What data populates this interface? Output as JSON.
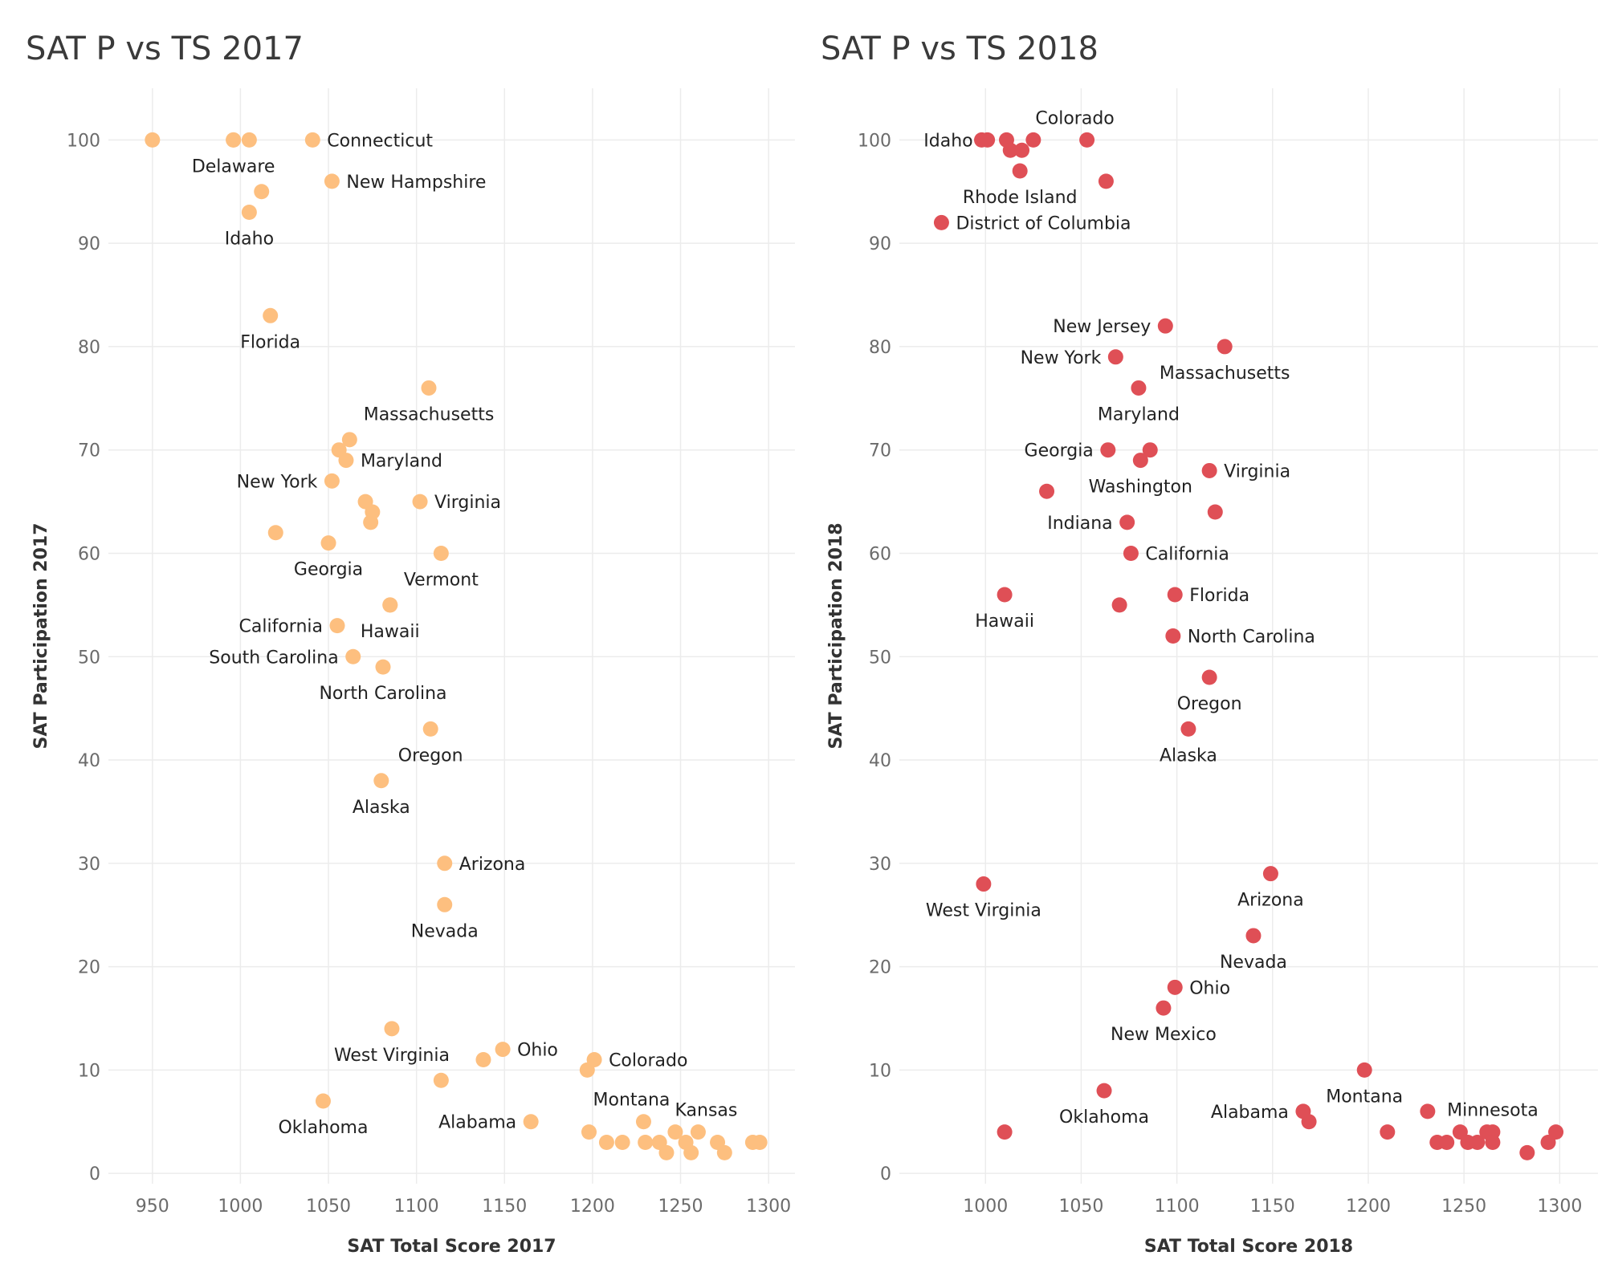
{
  "chart_data": [
    {
      "type": "scatter",
      "title": "SAT P vs TS 2017",
      "xlabel": "SAT Total Score 2017",
      "ylabel": "SAT Participation 2017",
      "xlim": [
        925,
        1315
      ],
      "ylim": [
        -1,
        105
      ],
      "xticks": [
        950,
        1000,
        1050,
        1100,
        1150,
        1200,
        1250,
        1300
      ],
      "yticks": [
        0,
        10,
        20,
        30,
        40,
        50,
        60,
        70,
        80,
        90,
        100
      ],
      "grid": true,
      "color": "#FDBF7F",
      "points": [
        {
          "x": 950,
          "y": 100
        },
        {
          "x": 996,
          "y": 100
        },
        {
          "x": 1005,
          "y": 100
        },
        {
          "x": 1041,
          "y": 100,
          "label": "Connecticut",
          "label_pos": "right"
        },
        {
          "x": 996,
          "y": 100,
          "label": "Delaware",
          "label_pos": "below"
        },
        {
          "x": 1012,
          "y": 95
        },
        {
          "x": 1052,
          "y": 96,
          "label": "New Hampshire",
          "label_pos": "right"
        },
        {
          "x": 1005,
          "y": 93,
          "label": "Idaho",
          "label_pos": "below"
        },
        {
          "x": 1017,
          "y": 83,
          "label": "Florida",
          "label_pos": "below"
        },
        {
          "x": 1107,
          "y": 76,
          "label": "Massachusetts",
          "label_pos": "below"
        },
        {
          "x": 1062,
          "y": 71
        },
        {
          "x": 1056,
          "y": 70
        },
        {
          "x": 1060,
          "y": 69,
          "label": "Maryland",
          "label_pos": "right"
        },
        {
          "x": 1052,
          "y": 67,
          "label": "New York",
          "label_pos": "left"
        },
        {
          "x": 1071,
          "y": 65
        },
        {
          "x": 1102,
          "y": 65,
          "label": "Virginia",
          "label_pos": "right"
        },
        {
          "x": 1075,
          "y": 64
        },
        {
          "x": 1074,
          "y": 63
        },
        {
          "x": 1020,
          "y": 62
        },
        {
          "x": 1050,
          "y": 61,
          "label": "Georgia",
          "label_pos": "below"
        },
        {
          "x": 1114,
          "y": 60,
          "label": "Vermont",
          "label_pos": "below"
        },
        {
          "x": 1085,
          "y": 55
        },
        {
          "x": 1055,
          "y": 53,
          "label": "California",
          "label_pos": "left"
        },
        {
          "x": 1085,
          "y": 55,
          "label": "Hawaii",
          "label_pos": "below"
        },
        {
          "x": 1064,
          "y": 50,
          "label": "South Carolina",
          "label_pos": "left"
        },
        {
          "x": 1081,
          "y": 49,
          "label": "North Carolina",
          "label_pos": "below"
        },
        {
          "x": 1108,
          "y": 43,
          "label": "Oregon",
          "label_pos": "below"
        },
        {
          "x": 1080,
          "y": 38,
          "label": "Alaska",
          "label_pos": "below"
        },
        {
          "x": 1116,
          "y": 30,
          "label": "Arizona",
          "label_pos": "right"
        },
        {
          "x": 1116,
          "y": 26,
          "label": "Nevada",
          "label_pos": "below"
        },
        {
          "x": 1086,
          "y": 14,
          "label": "West Virginia",
          "label_pos": "below"
        },
        {
          "x": 1149,
          "y": 12,
          "label": "Ohio",
          "label_pos": "right"
        },
        {
          "x": 1138,
          "y": 11
        },
        {
          "x": 1201,
          "y": 11,
          "label": "Colorado",
          "label_pos": "right"
        },
        {
          "x": 1197,
          "y": 10
        },
        {
          "x": 1114,
          "y": 9
        },
        {
          "x": 1047,
          "y": 7,
          "label": "Oklahoma",
          "label_pos": "below"
        },
        {
          "x": 1165,
          "y": 5,
          "label": "Alabama",
          "label_pos": "left"
        },
        {
          "x": 1229,
          "y": 5,
          "label": "Montana",
          "label_pos": "above-left"
        },
        {
          "x": 1198,
          "y": 4
        },
        {
          "x": 1208,
          "y": 3
        },
        {
          "x": 1217,
          "y": 3
        },
        {
          "x": 1230,
          "y": 3
        },
        {
          "x": 1238,
          "y": 3
        },
        {
          "x": 1242,
          "y": 2
        },
        {
          "x": 1247,
          "y": 4
        },
        {
          "x": 1253,
          "y": 3
        },
        {
          "x": 1256,
          "y": 2
        },
        {
          "x": 1260,
          "y": 4,
          "label": "Kansas",
          "label_pos": "above-right"
        },
        {
          "x": 1271,
          "y": 3
        },
        {
          "x": 1275,
          "y": 2
        },
        {
          "x": 1291,
          "y": 3
        },
        {
          "x": 1295,
          "y": 3
        }
      ]
    },
    {
      "type": "scatter",
      "title": "SAT P vs TS 2018",
      "xlabel": "SAT Total Score 2018",
      "ylabel": "SAT Participation 2018",
      "xlim": [
        955,
        1320
      ],
      "ylim": [
        -1,
        105
      ],
      "xticks": [
        1000,
        1050,
        1100,
        1150,
        1200,
        1250,
        1300
      ],
      "yticks": [
        0,
        10,
        20,
        30,
        40,
        50,
        60,
        70,
        80,
        90,
        100
      ],
      "grid": true,
      "color": "#DF4F56",
      "points": [
        {
          "x": 998,
          "y": 100
        },
        {
          "x": 1001,
          "y": 100,
          "label": "Idaho",
          "label_pos": "left"
        },
        {
          "x": 1011,
          "y": 100
        },
        {
          "x": 1013,
          "y": 99
        },
        {
          "x": 1019,
          "y": 99
        },
        {
          "x": 1025,
          "y": 100
        },
        {
          "x": 1053,
          "y": 100,
          "label": "Colorado",
          "label_pos": "above-left"
        },
        {
          "x": 1018,
          "y": 97,
          "label": "Rhode Island",
          "label_pos": "below"
        },
        {
          "x": 1063,
          "y": 96
        },
        {
          "x": 977,
          "y": 92,
          "label": "District of Columbia",
          "label_pos": "right"
        },
        {
          "x": 1094,
          "y": 82,
          "label": "New Jersey",
          "label_pos": "left"
        },
        {
          "x": 1125,
          "y": 80,
          "label": "Massachusetts",
          "label_pos": "below"
        },
        {
          "x": 1068,
          "y": 79,
          "label": "New York",
          "label_pos": "left"
        },
        {
          "x": 1080,
          "y": 76,
          "label": "Maryland",
          "label_pos": "below"
        },
        {
          "x": 1064,
          "y": 70,
          "label": "Georgia",
          "label_pos": "left"
        },
        {
          "x": 1086,
          "y": 70
        },
        {
          "x": 1081,
          "y": 69,
          "label": "Washington",
          "label_pos": "below"
        },
        {
          "x": 1117,
          "y": 68,
          "label": "Virginia",
          "label_pos": "right"
        },
        {
          "x": 1032,
          "y": 66
        },
        {
          "x": 1120,
          "y": 64
        },
        {
          "x": 1074,
          "y": 63,
          "label": "Indiana",
          "label_pos": "left"
        },
        {
          "x": 1076,
          "y": 60,
          "label": "California",
          "label_pos": "right"
        },
        {
          "x": 1010,
          "y": 56,
          "label": "Hawaii",
          "label_pos": "below"
        },
        {
          "x": 1099,
          "y": 56,
          "label": "Florida",
          "label_pos": "right"
        },
        {
          "x": 1070,
          "y": 55
        },
        {
          "x": 1098,
          "y": 52,
          "label": "North Carolina",
          "label_pos": "right"
        },
        {
          "x": 1117,
          "y": 48,
          "label": "Oregon",
          "label_pos": "below"
        },
        {
          "x": 1106,
          "y": 43,
          "label": "Alaska",
          "label_pos": "below"
        },
        {
          "x": 999,
          "y": 28,
          "label": "West Virginia",
          "label_pos": "below"
        },
        {
          "x": 1149,
          "y": 29,
          "label": "Arizona",
          "label_pos": "below"
        },
        {
          "x": 1140,
          "y": 23,
          "label": "Nevada",
          "label_pos": "below"
        },
        {
          "x": 1099,
          "y": 18,
          "label": "Ohio",
          "label_pos": "right"
        },
        {
          "x": 1093,
          "y": 16,
          "label": "New Mexico",
          "label_pos": "below"
        },
        {
          "x": 1198,
          "y": 10,
          "label": "Montana",
          "label_pos": "below"
        },
        {
          "x": 1062,
          "y": 8,
          "label": "Oklahoma",
          "label_pos": "below"
        },
        {
          "x": 1166,
          "y": 6,
          "label": "Alabama",
          "label_pos": "left"
        },
        {
          "x": 1169,
          "y": 5
        },
        {
          "x": 1010,
          "y": 4
        },
        {
          "x": 1210,
          "y": 4
        },
        {
          "x": 1231,
          "y": 6
        },
        {
          "x": 1236,
          "y": 3
        },
        {
          "x": 1241,
          "y": 3
        },
        {
          "x": 1248,
          "y": 4
        },
        {
          "x": 1252,
          "y": 3
        },
        {
          "x": 1257,
          "y": 3
        },
        {
          "x": 1262,
          "y": 4
        },
        {
          "x": 1265,
          "y": 4,
          "label": "Minnesota",
          "label_pos": "above"
        },
        {
          "x": 1265,
          "y": 3
        },
        {
          "x": 1283,
          "y": 2
        },
        {
          "x": 1294,
          "y": 3
        },
        {
          "x": 1298,
          "y": 4
        }
      ]
    }
  ]
}
